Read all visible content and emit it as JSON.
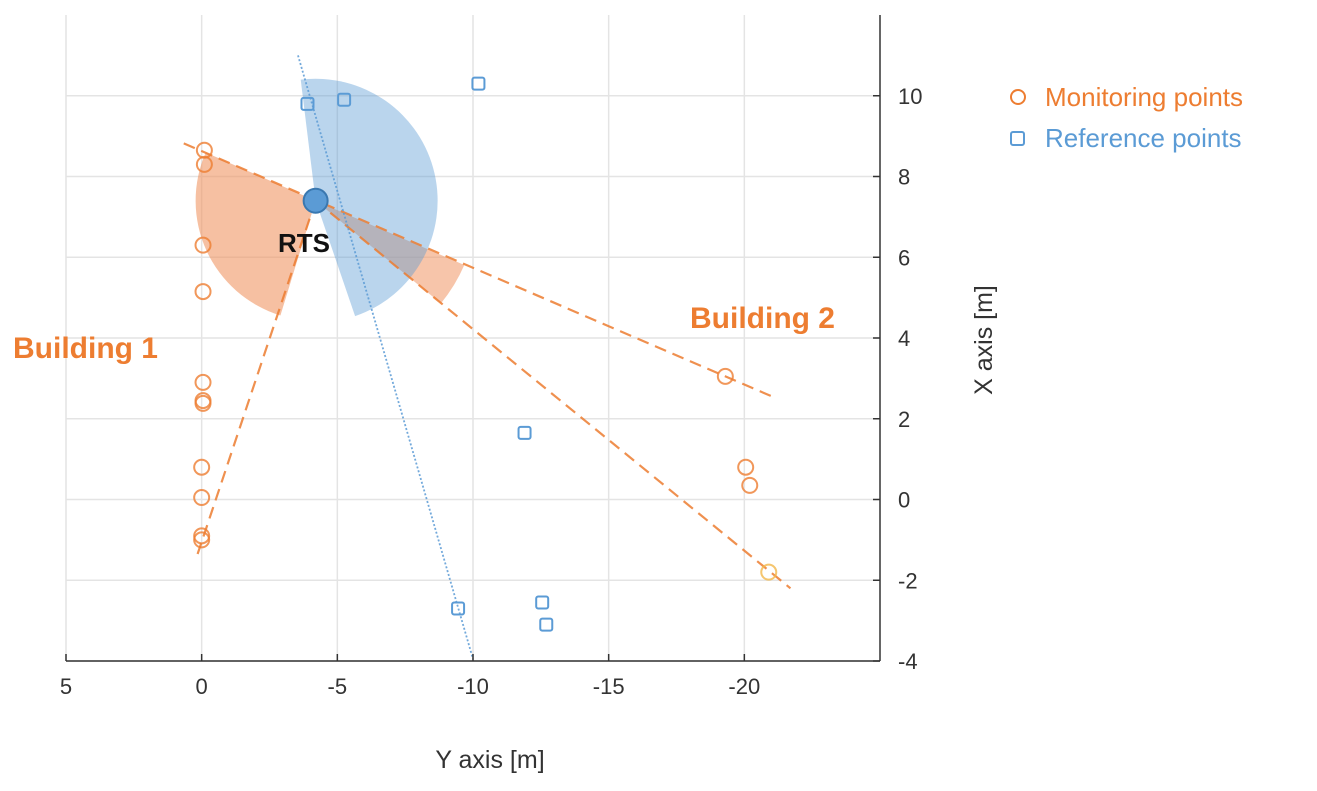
{
  "chart_data": {
    "type": "scatter",
    "xlabel": "Y axis [m]",
    "ylabel": "X axis [m]",
    "xlim": [
      5,
      -25
    ],
    "ylim": [
      -4,
      12
    ],
    "xticks": [
      5,
      0,
      -5,
      -10,
      -15,
      -20
    ],
    "yticks": [
      10,
      8,
      6,
      4,
      2,
      0,
      -2,
      -4
    ],
    "grid": true,
    "legend_position": "right",
    "colors": {
      "monitoring": "#ED7D31",
      "reference": "#5B9BD5",
      "highlight": "#F2B84B"
    },
    "series": [
      {
        "name": "Monitoring points",
        "marker": "circle",
        "points": [
          [
            -0.1,
            8.65
          ],
          [
            -0.1,
            8.3
          ],
          [
            -0.05,
            6.3
          ],
          [
            -0.05,
            5.15
          ],
          [
            -0.05,
            2.9
          ],
          [
            -0.05,
            2.45
          ],
          [
            -0.05,
            2.38
          ],
          [
            0,
            0.8
          ],
          [
            0,
            0.05
          ],
          [
            0,
            -0.9
          ],
          [
            0,
            -1.0
          ],
          [
            -19.3,
            3.05
          ],
          [
            -20.05,
            0.8
          ],
          [
            -20.2,
            0.35
          ],
          [
            -20.9,
            -1.8
          ]
        ]
      },
      {
        "name": "Reference points",
        "marker": "square",
        "points": [
          [
            -3.9,
            9.8
          ],
          [
            -5.25,
            9.9
          ],
          [
            -10.2,
            10.3
          ],
          [
            -11.9,
            1.65
          ],
          [
            -9.45,
            -2.7
          ],
          [
            -12.55,
            -2.55
          ],
          [
            -12.7,
            -3.1
          ]
        ]
      }
    ],
    "station": {
      "label": "RTS",
      "y": -4.2,
      "x": 7.4
    },
    "annotations": [
      {
        "label": "Building 1",
        "y": 7.0,
        "x": 3.7
      },
      {
        "label": "Building 2",
        "y": -18.2,
        "x": 4.5
      }
    ],
    "sight_lines": [
      {
        "style": "dashed",
        "color": "#ED7D31",
        "from": [
          0.66,
          8.82
        ],
        "to": [
          -21.2,
          2.5
        ]
      },
      {
        "style": "dashed",
        "color": "#ED7D31",
        "from": [
          -4.2,
          7.4
        ],
        "to": [
          -21.7,
          -2.2
        ]
      },
      {
        "style": "dashed",
        "color": "#ED7D31",
        "from": [
          -4.2,
          7.4
        ],
        "to": [
          0.15,
          -1.35
        ]
      },
      {
        "style": "dotted",
        "color": "#5B9BD5",
        "from": [
          -3.55,
          11.0
        ],
        "to": [
          -10,
          -3.95
        ]
      }
    ]
  }
}
